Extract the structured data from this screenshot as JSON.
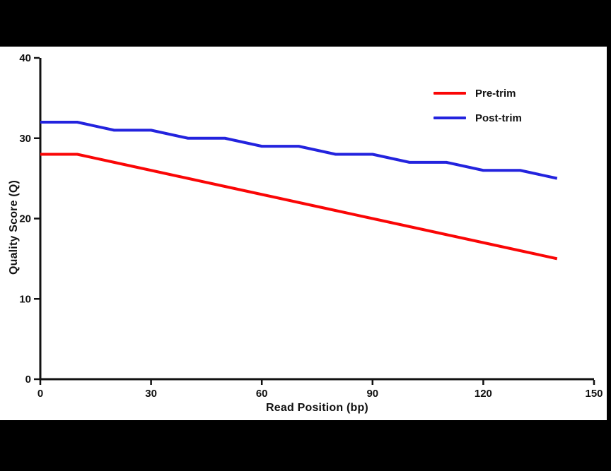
{
  "chart_data": {
    "type": "line",
    "title": "",
    "xlabel": "Read Position (bp)",
    "ylabel": "Quality Score (Q)",
    "xlim": [
      0,
      150
    ],
    "ylim": [
      0,
      40
    ],
    "xticks": [
      0,
      30,
      60,
      90,
      120,
      150
    ],
    "yticks": [
      0,
      10,
      20,
      30,
      40
    ],
    "grid": false,
    "legend_position": "top-right",
    "axis_color": "#111111",
    "text_color": "#111111",
    "x": [
      0,
      10,
      20,
      30,
      40,
      50,
      60,
      70,
      80,
      90,
      100,
      110,
      120,
      130,
      140
    ],
    "series": [
      {
        "name": "Pre-trim",
        "color": "#fa0606",
        "values": [
          28,
          28,
          27,
          26,
          25,
          24,
          23,
          22,
          21,
          20,
          19,
          18,
          17,
          16,
          15
        ]
      },
      {
        "name": "Post-trim",
        "color": "#2323de",
        "values": [
          32,
          32,
          31,
          31,
          30,
          30,
          29,
          29,
          28,
          28,
          27,
          27,
          26,
          26,
          25
        ]
      }
    ]
  }
}
